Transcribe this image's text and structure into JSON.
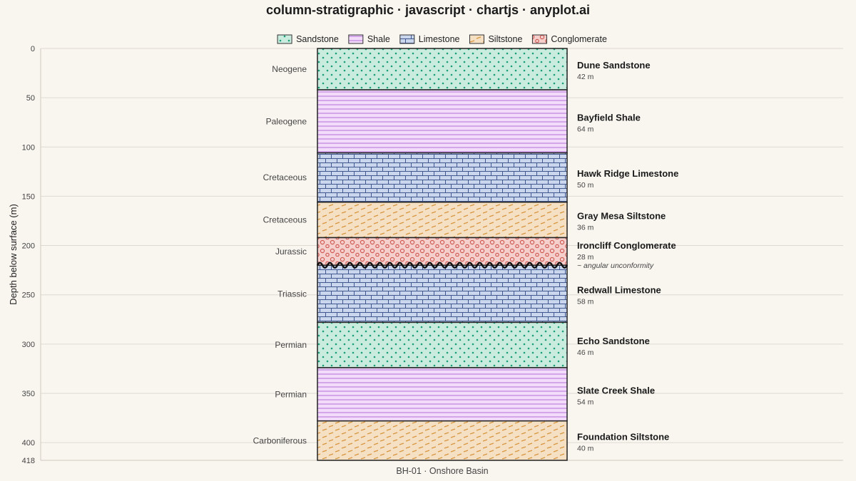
{
  "title": "column-stratigraphic · javascript · chartjs · anyplot.ai",
  "chart_data": {
    "type": "stratigraphic-column",
    "ylabel": "Depth below surface (m)",
    "xlabel": "BH-01 · Onshore Basin",
    "ylim": [
      0,
      418
    ],
    "yticks": [
      0,
      50,
      100,
      150,
      200,
      250,
      300,
      350,
      400,
      418
    ],
    "grid": true,
    "legend_position": "top-center",
    "legend": [
      {
        "lithology": "Sandstone",
        "pattern": "dots",
        "fill": "#c9ecdf",
        "stroke": "#1a9e77"
      },
      {
        "lithology": "Shale",
        "pattern": "hlines",
        "fill": "#f3dcfa",
        "stroke": "#b06fd6"
      },
      {
        "lithology": "Limestone",
        "pattern": "bricks",
        "fill": "#c9d6ee",
        "stroke": "#41588f"
      },
      {
        "lithology": "Siltstone",
        "pattern": "dashes",
        "fill": "#f5e0c4",
        "stroke": "#d8953f"
      },
      {
        "lithology": "Conglomerate",
        "pattern": "circles",
        "fill": "#f4cfcb",
        "stroke": "#cf5650"
      }
    ],
    "units": [
      {
        "name": "Dune Sandstone",
        "lithology": "Sandstone",
        "top": 0,
        "bottom": 42,
        "thickness_label": "42 m",
        "period": "Neogene"
      },
      {
        "name": "Bayfield Shale",
        "lithology": "Shale",
        "top": 42,
        "bottom": 106,
        "thickness_label": "64 m",
        "period": "Paleogene"
      },
      {
        "name": "Hawk Ridge Limestone",
        "lithology": "Limestone",
        "top": 106,
        "bottom": 156,
        "thickness_label": "50 m",
        "period": "Cretaceous"
      },
      {
        "name": "Gray Mesa Siltstone",
        "lithology": "Siltstone",
        "top": 156,
        "bottom": 192,
        "thickness_label": "36 m",
        "period": "Cretaceous"
      },
      {
        "name": "Ironcliff Conglomerate",
        "lithology": "Conglomerate",
        "top": 192,
        "bottom": 220,
        "thickness_label": "28 m",
        "period": "Jurassic",
        "annotation": "~ angular unconformity"
      },
      {
        "name": "Redwall Limestone",
        "lithology": "Limestone",
        "top": 220,
        "bottom": 278,
        "thickness_label": "58 m",
        "period": "Triassic"
      },
      {
        "name": "Echo Sandstone",
        "lithology": "Sandstone",
        "top": 278,
        "bottom": 324,
        "thickness_label": "46 m",
        "period": "Permian"
      },
      {
        "name": "Slate Creek Shale",
        "lithology": "Shale",
        "top": 324,
        "bottom": 378,
        "thickness_label": "54 m",
        "period": "Permian"
      },
      {
        "name": "Foundation Siltstone",
        "lithology": "Siltstone",
        "top": 378,
        "bottom": 418,
        "thickness_label": "40 m",
        "period": "Carboniferous"
      }
    ],
    "unconformity_depth": 220
  }
}
